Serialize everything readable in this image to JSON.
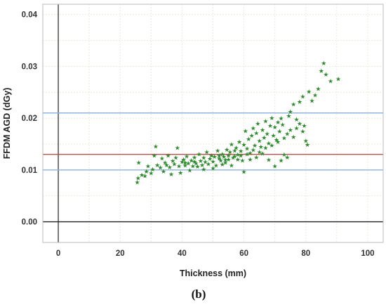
{
  "panel_label": "(b)",
  "chart_data": {
    "type": "scatter",
    "xlabel": "Thickness (mm)",
    "ylabel": "FFDM  AGD (dGy)",
    "xlim": [
      -5,
      105
    ],
    "ylim": [
      -0.004,
      0.042
    ],
    "xticks": [
      0,
      20,
      40,
      60,
      80,
      100
    ],
    "yticks": [
      0.0,
      0.01,
      0.02,
      0.03,
      0.04
    ],
    "ytick_labels": [
      "0.00",
      "0.01",
      "0.02",
      "0.03",
      "0.04"
    ],
    "grid": true,
    "marker": "star",
    "marker_color": "#2e8b2e",
    "reference_lines": [
      {
        "axis": "y",
        "value": 0.0,
        "color": "#222222"
      },
      {
        "axis": "x",
        "value": 0,
        "color": "#222222"
      },
      {
        "axis": "y",
        "value": 0.021,
        "color": "#8fb3d9"
      },
      {
        "axis": "y",
        "value": 0.013,
        "color": "#c0504d"
      },
      {
        "axis": "y",
        "value": 0.01,
        "color": "#8fb3d9"
      }
    ],
    "points": [
      [
        25.5,
        0.0077
      ],
      [
        25.8,
        0.0085
      ],
      [
        26,
        0.0115
      ],
      [
        27,
        0.0091
      ],
      [
        28,
        0.0089
      ],
      [
        28.5,
        0.0098
      ],
      [
        29,
        0.0108
      ],
      [
        30,
        0.0094
      ],
      [
        30.5,
        0.0102
      ],
      [
        31,
        0.0128
      ],
      [
        31.5,
        0.0146
      ],
      [
        32,
        0.011
      ],
      [
        33,
        0.0105
      ],
      [
        33.5,
        0.0123
      ],
      [
        34,
        0.0098
      ],
      [
        34.5,
        0.0115
      ],
      [
        35,
        0.011
      ],
      [
        35.5,
        0.0128
      ],
      [
        36,
        0.0106
      ],
      [
        36.5,
        0.0092
      ],
      [
        37,
        0.0118
      ],
      [
        37.5,
        0.0112
      ],
      [
        38,
        0.0124
      ],
      [
        38.5,
        0.0143
      ],
      [
        39,
        0.0108
      ],
      [
        39.5,
        0.0095
      ],
      [
        40,
        0.0116
      ],
      [
        40.5,
        0.0121
      ],
      [
        41,
        0.0109
      ],
      [
        41.5,
        0.0127
      ],
      [
        42,
        0.0113
      ],
      [
        42.5,
        0.01
      ],
      [
        43,
        0.0119
      ],
      [
        43.5,
        0.0108
      ],
      [
        44,
        0.0125
      ],
      [
        44.5,
        0.0113
      ],
      [
        45,
        0.0107
      ],
      [
        45.5,
        0.0131
      ],
      [
        46,
        0.0118
      ],
      [
        46.5,
        0.011
      ],
      [
        47,
        0.0124
      ],
      [
        47.5,
        0.0116
      ],
      [
        48,
        0.0135
      ],
      [
        48.5,
        0.0112
      ],
      [
        49,
        0.0122
      ],
      [
        49.5,
        0.0128
      ],
      [
        50,
        0.0117
      ],
      [
        50.5,
        0.0126
      ],
      [
        51,
        0.0109
      ],
      [
        51.5,
        0.0138
      ],
      [
        52,
        0.0123
      ],
      [
        52.5,
        0.0119
      ],
      [
        53,
        0.0131
      ],
      [
        53.5,
        0.0126
      ],
      [
        54,
        0.0115
      ],
      [
        54.5,
        0.014
      ],
      [
        55,
        0.0128
      ],
      [
        55.5,
        0.0135
      ],
      [
        56,
        0.015
      ],
      [
        56.5,
        0.0124
      ],
      [
        57,
        0.0138
      ],
      [
        57.5,
        0.0143
      ],
      [
        58,
        0.013
      ],
      [
        58.5,
        0.0155
      ],
      [
        59,
        0.0137
      ],
      [
        59.5,
        0.0119
      ],
      [
        60,
        0.0149
      ],
      [
        60.5,
        0.0176
      ],
      [
        61,
        0.0142
      ],
      [
        61.5,
        0.016
      ],
      [
        62,
        0.0133
      ],
      [
        62.5,
        0.0167
      ],
      [
        63,
        0.0181
      ],
      [
        63.5,
        0.0148
      ],
      [
        64,
        0.0172
      ],
      [
        64.5,
        0.019
      ],
      [
        65,
        0.0157
      ],
      [
        65.5,
        0.0145
      ],
      [
        66,
        0.0178
      ],
      [
        66.5,
        0.0163
      ],
      [
        67,
        0.0195
      ],
      [
        67.5,
        0.017
      ],
      [
        68,
        0.0152
      ],
      [
        68.5,
        0.0186
      ],
      [
        69,
        0.0201
      ],
      [
        69.5,
        0.0167
      ],
      [
        70,
        0.0183
      ],
      [
        70.5,
        0.0159
      ],
      [
        71,
        0.0193
      ],
      [
        71.5,
        0.0175
      ],
      [
        72,
        0.02
      ],
      [
        72.5,
        0.0188
      ],
      [
        73,
        0.013
      ],
      [
        74,
        0.0125
      ],
      [
        74.5,
        0.0205
      ],
      [
        75,
        0.0213
      ],
      [
        76,
        0.0227
      ],
      [
        77,
        0.0198
      ],
      [
        78,
        0.0232
      ],
      [
        79,
        0.0242
      ],
      [
        79.5,
        0.0186
      ],
      [
        80,
        0.0157
      ],
      [
        80.5,
        0.0149
      ],
      [
        81,
        0.0252
      ],
      [
        82,
        0.0234
      ],
      [
        83,
        0.0245
      ],
      [
        84,
        0.0257
      ],
      [
        85,
        0.0292
      ],
      [
        85.8,
        0.0307
      ],
      [
        86.5,
        0.0285
      ],
      [
        88,
        0.0272
      ],
      [
        90.5,
        0.0276
      ],
      [
        50,
        0.0104
      ],
      [
        47,
        0.0102
      ],
      [
        44,
        0.0117
      ],
      [
        41,
        0.0115
      ],
      [
        58,
        0.0121
      ],
      [
        60,
        0.0097
      ],
      [
        62,
        0.0121
      ],
      [
        64,
        0.0125
      ],
      [
        66,
        0.0132
      ],
      [
        68,
        0.012
      ],
      [
        70,
        0.0108
      ],
      [
        72,
        0.0119
      ],
      [
        56,
        0.0109
      ],
      [
        54,
        0.012
      ],
      [
        52,
        0.0128
      ],
      [
        53,
        0.0111
      ],
      [
        55,
        0.0121
      ],
      [
        57,
        0.0127
      ],
      [
        59,
        0.0128
      ],
      [
        61,
        0.0131
      ],
      [
        63,
        0.0139
      ],
      [
        65,
        0.0135
      ],
      [
        67,
        0.0143
      ],
      [
        69,
        0.0148
      ],
      [
        71,
        0.0155
      ],
      [
        73,
        0.0162
      ],
      [
        74,
        0.017
      ],
      [
        75,
        0.0178
      ],
      [
        76,
        0.0164
      ],
      [
        77,
        0.0181
      ],
      [
        78,
        0.019
      ],
      [
        79,
        0.0175
      ]
    ]
  }
}
